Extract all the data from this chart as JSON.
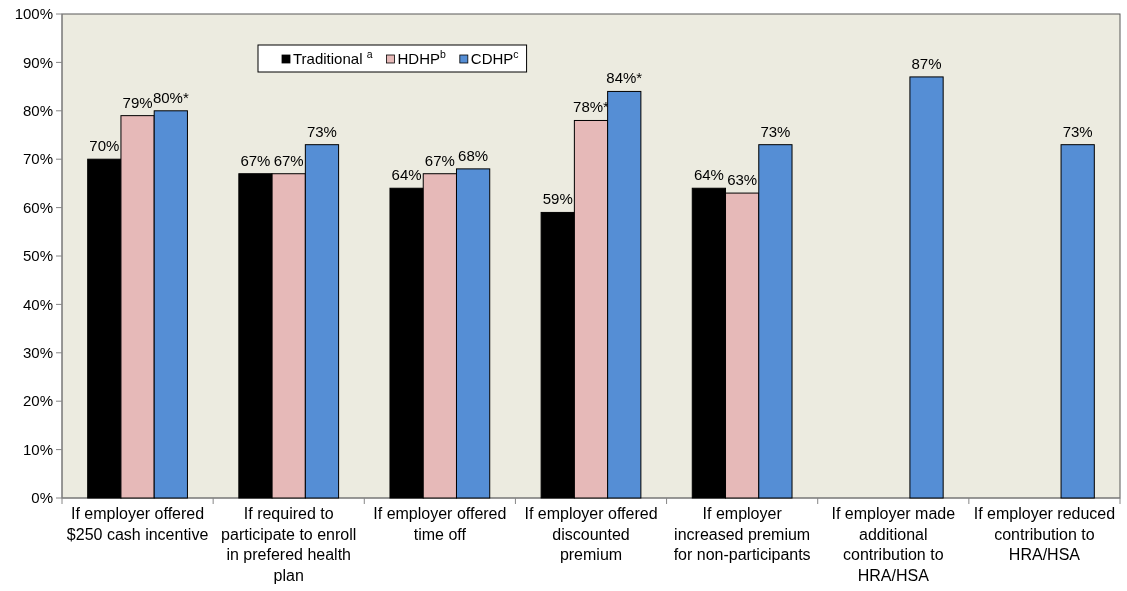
{
  "chart_data": {
    "type": "bar",
    "categories": [
      "If employer offered\n$250 cash incentive",
      "If required to\nparticipate to enroll\nin prefered health\nplan",
      "If employer offered\ntime off",
      "If employer offered\ndiscounted\npremium",
      "If employer\nincreased premium\nfor non-participants",
      "If employer made\nadditional\ncontribution to\nHRA/HSA",
      "If employer reduced\ncontribution to\nHRA/HSA"
    ],
    "series": [
      {
        "name": "Traditional $^{a}$",
        "color": "#000000",
        "values": [
          70,
          67,
          64,
          59,
          64,
          null,
          null
        ],
        "value_labels": [
          "70%",
          "67%",
          "64%",
          "59%",
          "64%",
          null,
          null
        ]
      },
      {
        "name": "HDHP$^{b}$",
        "color": "#e6b9b8",
        "values": [
          79,
          67,
          67,
          78,
          63,
          null,
          null
        ],
        "value_labels": [
          "79%",
          "67%",
          "67%",
          "78%*",
          "63%",
          null,
          null
        ]
      },
      {
        "name": "CDHP$^{c}$",
        "color": "#558ed5",
        "values": [
          80,
          73,
          68,
          84,
          73,
          87,
          73
        ],
        "value_labels": [
          "80%*",
          "73%",
          "68%",
          "84%*",
          "73%",
          "87%",
          "73%"
        ]
      }
    ],
    "ylim": [
      0,
      100
    ],
    "yticks": [
      {
        "value": 0,
        "label": "0%"
      },
      {
        "value": 10,
        "label": "10%"
      },
      {
        "value": 20,
        "label": "20%"
      },
      {
        "value": 30,
        "label": "30%"
      },
      {
        "value": 40,
        "label": "40%"
      },
      {
        "value": 50,
        "label": "50%"
      },
      {
        "value": 60,
        "label": "60%"
      },
      {
        "value": 70,
        "label": "70%"
      },
      {
        "value": 80,
        "label": "80%"
      },
      {
        "value": 90,
        "label": "90%"
      },
      {
        "value": 100,
        "label": "100%"
      }
    ],
    "legend": "top left"
  }
}
